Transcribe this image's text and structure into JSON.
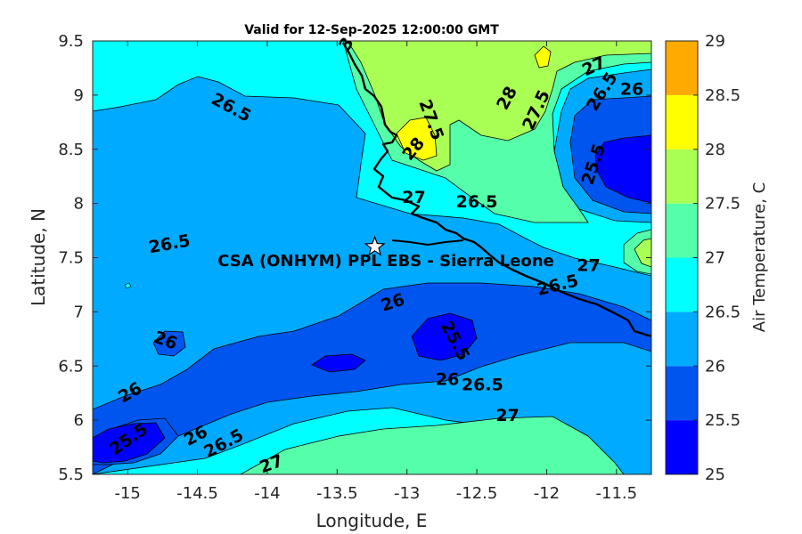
{
  "chart_data": {
    "type": "heatmap",
    "title": "Valid for 12-Sep-2025 12:00:00 GMT",
    "xlabel": "Longitude, E",
    "ylabel": "Latitude, N",
    "xlim": [
      -15.25,
      -11.25
    ],
    "ylim": [
      5.5,
      9.5
    ],
    "x_ticks": [
      -15,
      -14.5,
      -14,
      -13.5,
      -13,
      -12.5,
      -12,
      -11.5
    ],
    "x_tick_labels": [
      "-15",
      "-14.5",
      "-14",
      "-13.5",
      "-13",
      "-12.5",
      "-12",
      "-11.5"
    ],
    "y_ticks": [
      5.5,
      6,
      6.5,
      7,
      7.5,
      8,
      8.5,
      9,
      9.5
    ],
    "y_tick_labels": [
      "5.5",
      "6",
      "6.5",
      "7",
      "7.5",
      "8",
      "8.5",
      "9",
      "9.5"
    ],
    "colorbar": {
      "label": "Air Temperature, C",
      "levels": [
        25,
        25.5,
        26,
        26.5,
        27,
        27.5,
        28,
        28.5,
        29
      ],
      "level_labels": [
        "25",
        "25.5",
        "26",
        "26.5",
        "27",
        "27.5",
        "28",
        "28.5",
        "29"
      ],
      "colors": [
        "#0000ff",
        "#0055ee",
        "#00aaff",
        "#00ffff",
        "#55ffaa",
        "#aaff55",
        "#ffff00",
        "#ffaa00",
        "#ff5500"
      ]
    },
    "contour_labels": [
      {
        "text": "26.5",
        "lon": -14.26,
        "lat": 8.88,
        "rot": 28
      },
      {
        "text": "27.5",
        "lon": -12.83,
        "lat": 8.77,
        "rot": 70
      },
      {
        "text": "28",
        "lon": -12.28,
        "lat": 8.97,
        "rot": -62
      },
      {
        "text": "27.5",
        "lon": -12.07,
        "lat": 8.86,
        "rot": -65
      },
      {
        "text": "27",
        "lon": -11.66,
        "lat": 9.26,
        "rot": -25
      },
      {
        "text": "26.5",
        "lon": -11.6,
        "lat": 9.03,
        "rot": -58
      },
      {
        "text": "26",
        "lon": -11.39,
        "lat": 9.05,
        "rot": 0
      },
      {
        "text": "25.5",
        "lon": -11.66,
        "lat": 8.36,
        "rot": -72
      },
      {
        "text": "28",
        "lon": -12.95,
        "lat": 8.5,
        "rot": -50
      },
      {
        "text": "27",
        "lon": -12.95,
        "lat": 8.05,
        "rot": 0
      },
      {
        "text": "26.5",
        "lon": -12.5,
        "lat": 8.01,
        "rot": 0
      },
      {
        "text": "26.5",
        "lon": -14.7,
        "lat": 7.62,
        "rot": -10
      },
      {
        "text": "27",
        "lon": -11.7,
        "lat": 7.42,
        "rot": 0
      },
      {
        "text": "26.5",
        "lon": -11.92,
        "lat": 7.24,
        "rot": -14
      },
      {
        "text": "26",
        "lon": -13.1,
        "lat": 7.08,
        "rot": -18
      },
      {
        "text": "25.5",
        "lon": -12.66,
        "lat": 6.73,
        "rot": 62
      },
      {
        "text": "26",
        "lon": -14.73,
        "lat": 6.73,
        "rot": 20
      },
      {
        "text": "26",
        "lon": -12.71,
        "lat": 6.37,
        "rot": 0
      },
      {
        "text": "26.5",
        "lon": -12.46,
        "lat": 6.32,
        "rot": 0
      },
      {
        "text": "26",
        "lon": -14.98,
        "lat": 6.25,
        "rot": -30
      },
      {
        "text": "27",
        "lon": -12.28,
        "lat": 6.04,
        "rot": 0
      },
      {
        "text": "25.5",
        "lon": -14.99,
        "lat": 5.82,
        "rot": -35
      },
      {
        "text": "26",
        "lon": -14.51,
        "lat": 5.85,
        "rot": -28
      },
      {
        "text": "26.5",
        "lon": -14.31,
        "lat": 5.78,
        "rot": -28
      },
      {
        "text": "27",
        "lon": -13.97,
        "lat": 5.59,
        "rot": -20
      },
      {
        "text": "3",
        "lon": -13.43,
        "lat": 9.47,
        "rot": -60
      }
    ],
    "annotation": {
      "text": "CSA (ONHYM) PPL EBS - Sierra Leone",
      "star": {
        "lon": -13.23,
        "lat": 7.6
      }
    }
  }
}
